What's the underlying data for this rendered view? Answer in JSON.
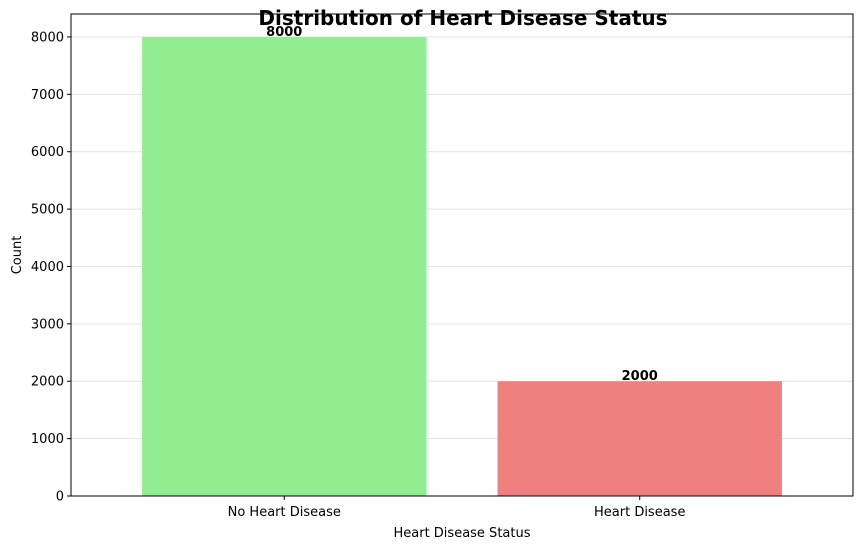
{
  "chart_data": {
    "type": "bar",
    "title": "Distribution of Heart Disease Status",
    "xlabel": "Heart Disease Status",
    "ylabel": "Count",
    "categories": [
      "No Heart Disease",
      "Heart Disease"
    ],
    "values": [
      8000,
      2000
    ],
    "colors": [
      "#90ee90",
      "#f08080"
    ],
    "ylim": [
      0,
      8400
    ],
    "yticks": [
      0,
      1000,
      2000,
      3000,
      4000,
      5000,
      6000,
      7000,
      8000
    ],
    "grid": "y-only",
    "data_labels": [
      "8000",
      "2000"
    ]
  }
}
